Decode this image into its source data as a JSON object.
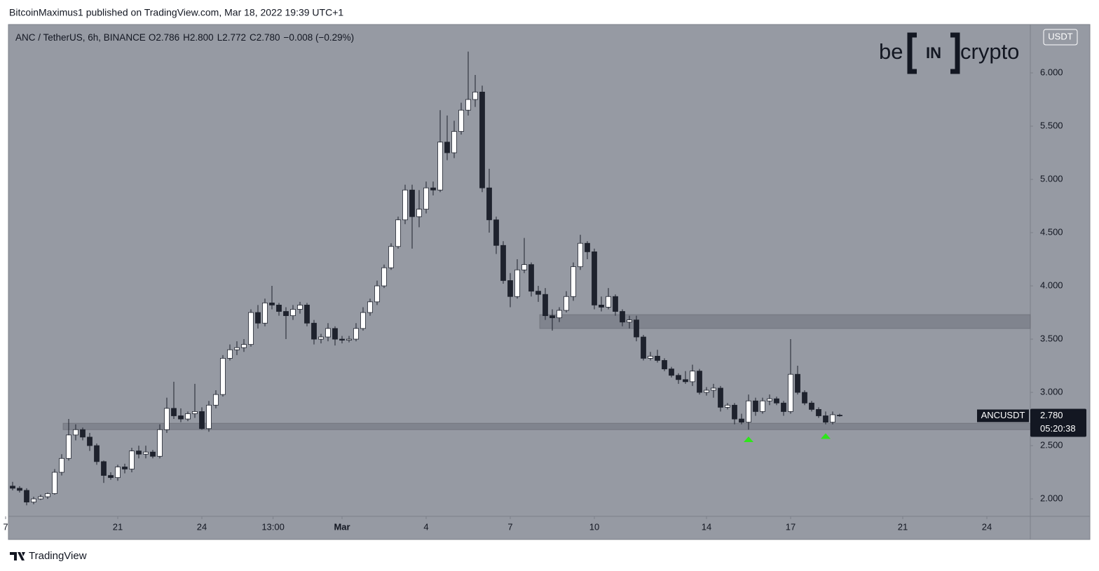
{
  "header": {
    "publisher": "BitcoinMaximus1 published on TradingView.com, Mar 18, 2022 19:39 UTC+1"
  },
  "footer": {
    "brand": "TradingView"
  },
  "logo": {
    "left": "be",
    "mid": "IN",
    "right": "crypto"
  },
  "chart_data": {
    "type": "candlestick",
    "title": "ANC / TetherUS, 6h, BINANCE",
    "ohlc_legend": [
      {
        "label": "O",
        "value": "2.786"
      },
      {
        "label": "H",
        "value": "2.800"
      },
      {
        "label": "L",
        "value": "2.772"
      },
      {
        "label": "C",
        "value": "2.780"
      }
    ],
    "change": "−0.008 (−0.29%)",
    "currency": "USDT",
    "symbol": "ANCUSDT",
    "last_price": {
      "value": 2.78,
      "label": "2.780"
    },
    "countdown": "05:20:38",
    "x": [
      17.25,
      17.5,
      17.75,
      18,
      18.25,
      18.5,
      18.75,
      19,
      19.25,
      19.5,
      19.75,
      20,
      20.25,
      20.5,
      20.75,
      21,
      21.25,
      21.5,
      21.75,
      22,
      22.25,
      22.5,
      22.75,
      23,
      23.25,
      23.5,
      23.75,
      24,
      24.25,
      24.5,
      24.75,
      25,
      25.25,
      25.5,
      25.75,
      26,
      26.25,
      26.5,
      26.75,
      27,
      27.25,
      27.5,
      27.75,
      28,
      28.25,
      28.5,
      28.75,
      29,
      29.25,
      29.5,
      29.75,
      30,
      30.25,
      30.5,
      30.75,
      31,
      31.25,
      31.5,
      31.75,
      32,
      32.25,
      32.5,
      32.75,
      33,
      33.25,
      33.5,
      33.75,
      34,
      34.25,
      34.5,
      34.75,
      35,
      35.25,
      35.5,
      35.75,
      36,
      36.25,
      36.5,
      36.75,
      37,
      37.25,
      37.5,
      37.75,
      38,
      38.25,
      38.5,
      38.75,
      39,
      39.25,
      39.5,
      39.75,
      40,
      40.25,
      40.5,
      40.75,
      41,
      41.25,
      41.5,
      41.75,
      42,
      42.25,
      42.5,
      42.75,
      43,
      43.25,
      43.5,
      43.75,
      44,
      44.25,
      44.5,
      44.75,
      45,
      45.25,
      45.5,
      45.75,
      46,
      46.25,
      46.5,
      46.75
    ],
    "open": [
      2.12,
      2.1,
      2.08,
      1.97,
      2.0,
      2.02,
      2.05,
      2.25,
      2.38,
      2.6,
      2.65,
      2.58,
      2.5,
      2.35,
      2.22,
      2.2,
      2.3,
      2.28,
      2.45,
      2.42,
      2.44,
      2.4,
      2.65,
      2.85,
      2.78,
      2.75,
      2.8,
      2.82,
      2.66,
      2.88,
      2.98,
      3.32,
      3.4,
      3.42,
      3.45,
      3.75,
      3.65,
      3.84,
      3.82,
      3.76,
      3.72,
      3.78,
      3.82,
      3.65,
      3.5,
      3.52,
      3.6,
      3.5,
      3.49,
      3.5,
      3.6,
      3.75,
      3.85,
      4.0,
      4.17,
      4.37,
      4.62,
      4.9,
      4.65,
      4.72,
      4.92,
      4.9,
      5.35,
      5.25,
      5.45,
      5.65,
      5.75,
      5.82,
      4.92,
      4.62,
      4.38,
      4.05,
      3.9,
      4.15,
      4.2,
      3.95,
      3.92,
      3.72,
      3.7,
      3.77,
      3.9,
      4.18,
      4.4,
      4.32,
      3.82,
      3.8,
      3.9,
      3.76,
      3.66,
      3.68,
      3.52,
      3.32,
      3.34,
      3.3,
      3.22,
      3.16,
      3.12,
      3.1,
      3.2,
      3.0,
      3.02,
      3.04,
      2.86,
      2.88,
      2.75,
      2.72,
      2.92,
      2.82,
      2.92,
      2.94,
      2.9,
      2.82,
      3.17,
      3.0,
      2.9,
      2.84,
      2.78,
      2.72,
      2.786
    ],
    "high": [
      2.16,
      2.12,
      2.1,
      2.02,
      2.04,
      2.06,
      2.28,
      2.42,
      2.75,
      2.7,
      2.67,
      2.62,
      2.52,
      2.36,
      2.25,
      2.32,
      2.33,
      2.48,
      2.5,
      2.5,
      2.46,
      2.7,
      2.95,
      3.1,
      2.85,
      2.82,
      3.08,
      2.86,
      2.92,
      3.02,
      3.35,
      3.45,
      3.48,
      3.5,
      3.78,
      3.82,
      3.88,
      4.0,
      3.84,
      3.8,
      3.82,
      3.85,
      3.84,
      3.68,
      3.55,
      3.65,
      3.62,
      3.53,
      3.53,
      3.65,
      3.8,
      3.88,
      4.05,
      4.2,
      4.4,
      4.65,
      4.95,
      4.95,
      4.9,
      4.98,
      4.98,
      5.65,
      5.6,
      5.55,
      5.72,
      6.2,
      5.98,
      5.88,
      5.1,
      4.65,
      4.42,
      4.12,
      4.25,
      4.45,
      4.22,
      4.0,
      3.98,
      3.78,
      3.8,
      3.95,
      4.22,
      4.48,
      4.42,
      4.35,
      3.9,
      3.98,
      3.92,
      3.78,
      3.72,
      3.72,
      3.54,
      3.38,
      3.4,
      3.32,
      3.24,
      3.18,
      3.2,
      3.26,
      3.22,
      3.05,
      3.08,
      3.06,
      2.9,
      2.9,
      2.8,
      2.98,
      2.95,
      2.95,
      2.98,
      2.96,
      2.92,
      3.5,
      3.25,
      3.02,
      2.92,
      2.86,
      2.82,
      2.82,
      2.8
    ],
    "low": [
      2.08,
      2.06,
      1.94,
      1.95,
      1.99,
      2.0,
      2.04,
      2.22,
      2.36,
      2.55,
      2.55,
      2.45,
      2.32,
      2.15,
      2.18,
      2.17,
      2.24,
      2.25,
      2.38,
      2.38,
      2.38,
      2.38,
      2.62,
      2.75,
      2.72,
      2.73,
      2.76,
      2.65,
      2.63,
      2.85,
      2.96,
      3.3,
      3.35,
      3.38,
      3.43,
      3.6,
      3.62,
      3.78,
      3.72,
      3.5,
      3.68,
      3.74,
      3.62,
      3.45,
      3.46,
      3.48,
      3.44,
      3.46,
      3.47,
      3.48,
      3.58,
      3.72,
      3.82,
      3.98,
      4.15,
      4.35,
      4.58,
      4.35,
      4.55,
      4.68,
      4.85,
      4.88,
      5.18,
      5.2,
      5.42,
      5.6,
      5.68,
      4.88,
      4.5,
      4.3,
      4.02,
      3.8,
      3.88,
      4.12,
      3.9,
      3.85,
      3.68,
      3.58,
      3.66,
      3.75,
      3.86,
      4.15,
      4.25,
      3.78,
      3.76,
      3.78,
      3.72,
      3.62,
      3.6,
      3.48,
      3.3,
      3.3,
      3.28,
      3.2,
      3.14,
      3.08,
      3.08,
      3.06,
      2.98,
      2.97,
      2.95,
      2.82,
      2.84,
      2.7,
      2.7,
      2.65,
      2.78,
      2.8,
      2.88,
      2.88,
      2.78,
      2.8,
      2.98,
      2.88,
      2.82,
      2.76,
      2.7,
      2.7,
      2.772
    ],
    "close": [
      2.1,
      2.08,
      1.97,
      2.0,
      2.02,
      2.05,
      2.25,
      2.38,
      2.6,
      2.65,
      2.58,
      2.5,
      2.35,
      2.22,
      2.2,
      2.3,
      2.28,
      2.45,
      2.42,
      2.44,
      2.4,
      2.65,
      2.85,
      2.78,
      2.75,
      2.8,
      2.82,
      2.66,
      2.88,
      2.98,
      3.32,
      3.4,
      3.42,
      3.45,
      3.75,
      3.65,
      3.84,
      3.82,
      3.76,
      3.72,
      3.78,
      3.82,
      3.65,
      3.5,
      3.52,
      3.6,
      3.5,
      3.49,
      3.5,
      3.6,
      3.75,
      3.85,
      4.0,
      4.17,
      4.37,
      4.62,
      4.9,
      4.65,
      4.72,
      4.92,
      4.9,
      5.35,
      5.25,
      5.45,
      5.65,
      5.75,
      5.82,
      4.92,
      4.62,
      4.38,
      4.05,
      3.9,
      4.15,
      4.2,
      3.95,
      3.92,
      3.72,
      3.7,
      3.77,
      3.9,
      4.18,
      4.4,
      4.32,
      3.82,
      3.8,
      3.9,
      3.76,
      3.66,
      3.68,
      3.52,
      3.32,
      3.34,
      3.3,
      3.22,
      3.16,
      3.12,
      3.1,
      3.2,
      3.0,
      3.02,
      3.04,
      2.86,
      2.88,
      2.75,
      2.72,
      2.92,
      2.82,
      2.92,
      2.94,
      2.9,
      2.82,
      3.17,
      3.0,
      2.9,
      2.84,
      2.78,
      2.72,
      2.79,
      2.78
    ],
    "colors": {
      "up": "#ffffff",
      "down": "#1e222d",
      "wick": "#1e222d"
    },
    "xlim": [
      17.1,
      53.55
    ],
    "ylim": [
      1.836,
      6.454
    ],
    "xticks": [
      {
        "value": 17,
        "label": "7"
      },
      21,
      24,
      {
        "value": 26.54,
        "label": "13:00"
      },
      {
        "value": 29,
        "label": "Mar"
      },
      {
        "value": 32,
        "label": "4"
      },
      {
        "value": 35,
        "label": "7"
      },
      {
        "value": 38,
        "label": "10"
      },
      {
        "value": 42,
        "label": "14"
      },
      {
        "value": 45,
        "label": "17"
      },
      {
        "value": 49,
        "label": "21"
      },
      {
        "value": 52,
        "label": "24"
      }
    ],
    "yticks": [
      {
        "value": 2,
        "label": "2.000"
      },
      {
        "value": 2.5,
        "label": "2.500"
      },
      {
        "value": 3,
        "label": "3.000"
      },
      {
        "value": 3.5,
        "label": "3.500"
      },
      {
        "value": 4,
        "label": "4.000"
      },
      {
        "value": 4.5,
        "label": "4.500"
      },
      {
        "value": 5,
        "label": "5.000"
      },
      {
        "value": 5.5,
        "label": "5.500"
      },
      {
        "value": 6,
        "label": "6.000"
      }
    ],
    "grid": false,
    "zones": [
      {
        "x_start": 19.05,
        "low": 2.65,
        "high": 2.71,
        "color": "#6f737d"
      },
      {
        "x_start": 36.05,
        "low": 3.6,
        "high": 3.73,
        "color": "#6f737d"
      }
    ],
    "markers": [
      {
        "x": 43.5,
        "y": 2.56,
        "color": "#2ee61a"
      },
      {
        "x": 46.25,
        "y": 2.59,
        "color": "#2ee61a"
      }
    ]
  }
}
